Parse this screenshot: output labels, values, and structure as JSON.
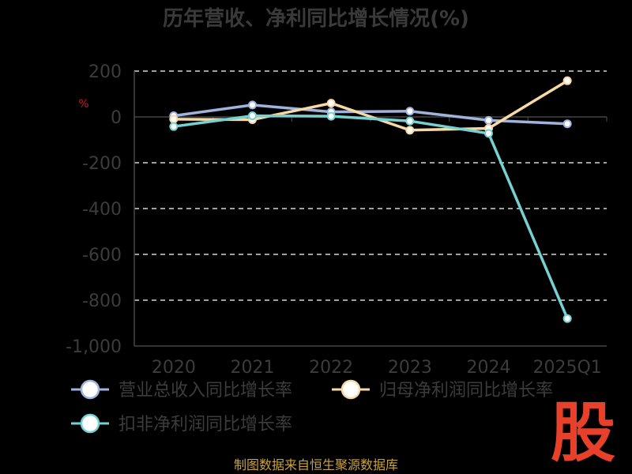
{
  "chart_data": {
    "type": "line",
    "title": "历年营收、净利同比增长情况(%)",
    "categories": [
      "2020",
      "2021",
      "2022",
      "2023",
      "2024",
      "2025Q1"
    ],
    "series": [
      {
        "name": "营业总收入同比增长率",
        "color": "#9fb3dc",
        "values": [
          5,
          52,
          22,
          25,
          -15,
          -30
        ]
      },
      {
        "name": "归母净利润同比增长率",
        "color": "#f7d9a6",
        "values": [
          -10,
          -12,
          60,
          -58,
          -50,
          158
        ]
      },
      {
        "name": "扣非净利润同比增长率",
        "color": "#76d1d2",
        "values": [
          -42,
          5,
          3,
          -18,
          -72,
          -880
        ]
      }
    ],
    "ylim": [
      -1000,
      200
    ],
    "yticks": [
      "200",
      "0",
      "-200",
      "-400",
      "-600",
      "-800",
      "-1,000"
    ],
    "y_unit": "%",
    "grid": true,
    "legend_position": "bottom-left"
  },
  "footer": "制图数据来自恒生聚源数据库",
  "logo": "股"
}
